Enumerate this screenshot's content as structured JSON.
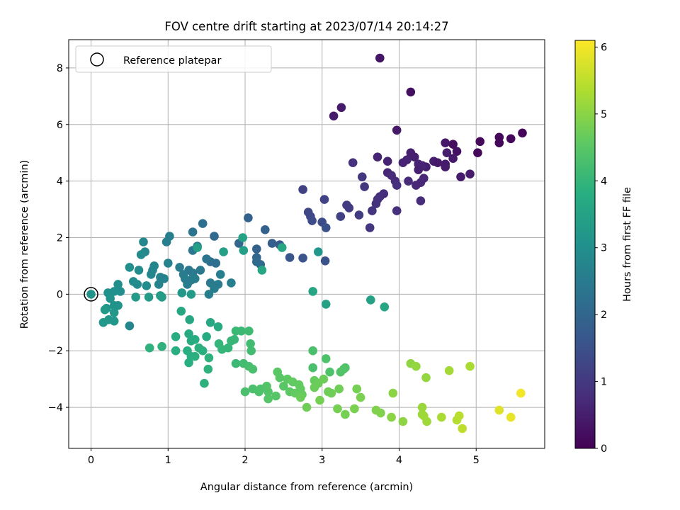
{
  "chart_data": {
    "type": "scatter",
    "title": "FOV centre drift starting at 2023/07/14 20:14:27",
    "xlabel": "Angular distance from reference (arcmin)",
    "ylabel": "Rotation from reference (arcmin)",
    "xlim": [
      -0.29,
      5.89
    ],
    "ylim": [
      -5.45,
      9.0
    ],
    "x_ticks": [
      0,
      1,
      2,
      3,
      4,
      5
    ],
    "y_ticks": [
      -4,
      -2,
      0,
      2,
      4,
      6,
      8
    ],
    "grid": true,
    "legend": {
      "position": "top-left",
      "entries": [
        "Reference platepar"
      ]
    },
    "reference_point": {
      "x": 0,
      "y": 0
    },
    "colorbar": {
      "label": "Hours from first FF file",
      "colormap": "viridis",
      "range": [
        0,
        6.1
      ],
      "ticks": [
        0,
        1,
        2,
        3,
        4,
        5,
        6
      ]
    },
    "points": [
      {
        "x": 3.75,
        "y": 8.35,
        "h": 0.35
      },
      {
        "x": 4.15,
        "y": 7.15,
        "h": 0.25
      },
      {
        "x": 3.25,
        "y": 6.6,
        "h": 0.45
      },
      {
        "x": 3.15,
        "y": 6.3,
        "h": 0.45
      },
      {
        "x": 5.6,
        "y": 5.7,
        "h": 0.1
      },
      {
        "x": 5.45,
        "y": 5.5,
        "h": 0.1
      },
      {
        "x": 5.3,
        "y": 5.55,
        "h": 0.1
      },
      {
        "x": 5.3,
        "y": 5.35,
        "h": 0.1
      },
      {
        "x": 5.05,
        "y": 5.4,
        "h": 0.1
      },
      {
        "x": 5.02,
        "y": 5.0,
        "h": 0.1
      },
      {
        "x": 4.7,
        "y": 5.3,
        "h": 0.2
      },
      {
        "x": 4.6,
        "y": 5.35,
        "h": 0.4
      },
      {
        "x": 4.62,
        "y": 5.0,
        "h": 0.5
      },
      {
        "x": 4.75,
        "y": 5.05,
        "h": 0.3
      },
      {
        "x": 3.97,
        "y": 5.8,
        "h": 0.4
      },
      {
        "x": 3.72,
        "y": 4.85,
        "h": 0.6
      },
      {
        "x": 4.1,
        "y": 4.75,
        "h": 0.6
      },
      {
        "x": 4.15,
        "y": 5.0,
        "h": 0.5
      },
      {
        "x": 4.2,
        "y": 4.85,
        "h": 0.5
      },
      {
        "x": 4.35,
        "y": 4.5,
        "h": 0.5
      },
      {
        "x": 4.45,
        "y": 4.7,
        "h": 0.5
      },
      {
        "x": 4.5,
        "y": 4.65,
        "h": 0.4
      },
      {
        "x": 4.6,
        "y": 4.6,
        "h": 0.45
      },
      {
        "x": 4.7,
        "y": 4.8,
        "h": 0.45
      },
      {
        "x": 4.6,
        "y": 4.5,
        "h": 0.45
      },
      {
        "x": 4.8,
        "y": 4.15,
        "h": 0.45
      },
      {
        "x": 4.92,
        "y": 4.25,
        "h": 0.45
      },
      {
        "x": 4.25,
        "y": 4.6,
        "h": 0.6
      },
      {
        "x": 4.3,
        "y": 4.55,
        "h": 0.6
      },
      {
        "x": 4.25,
        "y": 4.4,
        "h": 0.55
      },
      {
        "x": 4.28,
        "y": 3.95,
        "h": 0.7
      },
      {
        "x": 4.32,
        "y": 4.1,
        "h": 0.7
      },
      {
        "x": 4.22,
        "y": 3.85,
        "h": 0.7
      },
      {
        "x": 4.28,
        "y": 3.3,
        "h": 0.75
      },
      {
        "x": 4.05,
        "y": 4.65,
        "h": 0.6
      },
      {
        "x": 3.85,
        "y": 4.7,
        "h": 0.6
      },
      {
        "x": 3.85,
        "y": 4.3,
        "h": 0.65
      },
      {
        "x": 3.9,
        "y": 4.2,
        "h": 0.75
      },
      {
        "x": 3.95,
        "y": 4.0,
        "h": 0.75
      },
      {
        "x": 3.97,
        "y": 3.85,
        "h": 0.8
      },
      {
        "x": 4.12,
        "y": 4.0,
        "h": 0.75
      },
      {
        "x": 3.8,
        "y": 3.55,
        "h": 0.8
      },
      {
        "x": 3.75,
        "y": 3.45,
        "h": 0.8
      },
      {
        "x": 3.72,
        "y": 3.35,
        "h": 0.85
      },
      {
        "x": 3.7,
        "y": 3.2,
        "h": 0.85
      },
      {
        "x": 3.65,
        "y": 2.95,
        "h": 0.9
      },
      {
        "x": 3.97,
        "y": 2.95,
        "h": 0.85
      },
      {
        "x": 3.62,
        "y": 2.35,
        "h": 0.95
      },
      {
        "x": 3.4,
        "y": 4.65,
        "h": 0.85
      },
      {
        "x": 3.52,
        "y": 4.15,
        "h": 0.95
      },
      {
        "x": 3.55,
        "y": 3.8,
        "h": 0.95
      },
      {
        "x": 3.32,
        "y": 3.15,
        "h": 1.1
      },
      {
        "x": 3.35,
        "y": 3.05,
        "h": 1.05
      },
      {
        "x": 3.48,
        "y": 2.8,
        "h": 1.1
      },
      {
        "x": 3.24,
        "y": 2.75,
        "h": 1.15
      },
      {
        "x": 3.03,
        "y": 3.35,
        "h": 1.2
      },
      {
        "x": 2.75,
        "y": 3.7,
        "h": 1.2
      },
      {
        "x": 2.82,
        "y": 2.9,
        "h": 1.3
      },
      {
        "x": 2.85,
        "y": 2.75,
        "h": 1.3
      },
      {
        "x": 2.87,
        "y": 2.6,
        "h": 1.4
      },
      {
        "x": 3.0,
        "y": 2.55,
        "h": 1.4
      },
      {
        "x": 3.05,
        "y": 2.35,
        "h": 1.5
      },
      {
        "x": 3.04,
        "y": 1.18,
        "h": 1.5
      },
      {
        "x": 2.75,
        "y": 1.28,
        "h": 1.6
      },
      {
        "x": 2.58,
        "y": 1.3,
        "h": 1.65
      },
      {
        "x": 2.45,
        "y": 1.75,
        "h": 1.7
      },
      {
        "x": 2.35,
        "y": 1.8,
        "h": 1.8
      },
      {
        "x": 2.26,
        "y": 2.28,
        "h": 1.9
      },
      {
        "x": 2.04,
        "y": 2.7,
        "h": 1.9
      },
      {
        "x": 2.15,
        "y": 1.6,
        "h": 1.9
      },
      {
        "x": 2.15,
        "y": 1.3,
        "h": 2.0
      },
      {
        "x": 2.15,
        "y": 1.15,
        "h": 2.1
      },
      {
        "x": 2.2,
        "y": 1.05,
        "h": 2.1
      },
      {
        "x": 1.92,
        "y": 1.8,
        "h": 2.0
      },
      {
        "x": 1.6,
        "y": 2.05,
        "h": 2.1
      },
      {
        "x": 1.62,
        "y": 1.1,
        "h": 2.2
      },
      {
        "x": 1.55,
        "y": 1.15,
        "h": 2.2
      },
      {
        "x": 1.5,
        "y": 1.25,
        "h": 2.3
      },
      {
        "x": 1.45,
        "y": 2.5,
        "h": 2.2
      },
      {
        "x": 1.32,
        "y": 2.2,
        "h": 2.3
      },
      {
        "x": 1.38,
        "y": 1.7,
        "h": 2.4
      },
      {
        "x": 1.32,
        "y": 1.55,
        "h": 2.4
      },
      {
        "x": 1.27,
        "y": 0.85,
        "h": 2.4
      },
      {
        "x": 1.32,
        "y": 0.75,
        "h": 2.45
      },
      {
        "x": 1.42,
        "y": 0.85,
        "h": 2.45
      },
      {
        "x": 1.3,
        "y": 0.5,
        "h": 2.5
      },
      {
        "x": 1.2,
        "y": 0.7,
        "h": 2.5
      },
      {
        "x": 1.15,
        "y": 0.95,
        "h": 2.5
      },
      {
        "x": 1.22,
        "y": 0.55,
        "h": 2.55
      },
      {
        "x": 1.25,
        "y": 0.35,
        "h": 2.55
      },
      {
        "x": 1.35,
        "y": 0.55,
        "h": 2.55
      },
      {
        "x": 1.55,
        "y": 0.4,
        "h": 2.5
      },
      {
        "x": 1.65,
        "y": 0.35,
        "h": 2.5
      },
      {
        "x": 1.6,
        "y": 0.2,
        "h": 2.55
      },
      {
        "x": 1.53,
        "y": 0.0,
        "h": 2.6
      },
      {
        "x": 1.82,
        "y": 0.4,
        "h": 2.6
      },
      {
        "x": 1.68,
        "y": 0.7,
        "h": 2.6
      },
      {
        "x": 1.02,
        "y": 2.05,
        "h": 2.6
      },
      {
        "x": 0.98,
        "y": 1.85,
        "h": 2.6
      },
      {
        "x": 1.0,
        "y": 1.1,
        "h": 2.7
      },
      {
        "x": 0.9,
        "y": 0.6,
        "h": 2.7
      },
      {
        "x": 0.95,
        "y": 0.55,
        "h": 2.7
      },
      {
        "x": 0.88,
        "y": 0.35,
        "h": 2.7
      },
      {
        "x": 0.78,
        "y": 0.7,
        "h": 2.8
      },
      {
        "x": 0.8,
        "y": 0.85,
        "h": 2.8
      },
      {
        "x": 0.82,
        "y": 1.0,
        "h": 2.8
      },
      {
        "x": 0.68,
        "y": 1.85,
        "h": 2.8
      },
      {
        "x": 0.7,
        "y": 1.5,
        "h": 2.8
      },
      {
        "x": 0.65,
        "y": 1.4,
        "h": 2.9
      },
      {
        "x": 0.62,
        "y": 0.85,
        "h": 2.9
      },
      {
        "x": 0.6,
        "y": 0.35,
        "h": 2.9
      },
      {
        "x": 0.72,
        "y": 0.3,
        "h": 2.95
      },
      {
        "x": 0.55,
        "y": 0.45,
        "h": 2.95
      },
      {
        "x": 0.5,
        "y": 0.95,
        "h": 3.0
      },
      {
        "x": 0.35,
        "y": 0.35,
        "h": 3.0
      },
      {
        "x": 0.38,
        "y": 0.1,
        "h": 3.0
      },
      {
        "x": 0.3,
        "y": 0.1,
        "h": 3.05
      },
      {
        "x": 0.22,
        "y": 0.05,
        "h": 3.05
      },
      {
        "x": 0.25,
        "y": -0.15,
        "h": 3.1
      },
      {
        "x": 0.3,
        "y": -0.4,
        "h": 3.1
      },
      {
        "x": 0.35,
        "y": -0.4,
        "h": 3.1
      },
      {
        "x": 0.2,
        "y": -0.5,
        "h": 3.15
      },
      {
        "x": 0.3,
        "y": -0.65,
        "h": 3.2
      },
      {
        "x": 0.3,
        "y": -0.95,
        "h": 3.2
      },
      {
        "x": 0.23,
        "y": -0.9,
        "h": 3.2
      },
      {
        "x": 0.16,
        "y": -1.0,
        "h": 3.2
      },
      {
        "x": 0.18,
        "y": -0.55,
        "h": 3.25
      },
      {
        "x": 0.5,
        "y": -1.12,
        "h": 2.8
      },
      {
        "x": 0.58,
        "y": -0.1,
        "h": 3.3
      },
      {
        "x": 0.75,
        "y": -0.1,
        "h": 3.3
      },
      {
        "x": 0.9,
        "y": -0.05,
        "h": 3.3
      },
      {
        "x": 0.92,
        "y": -0.1,
        "h": 3.35
      },
      {
        "x": 1.18,
        "y": 0.05,
        "h": 3.2
      },
      {
        "x": 1.3,
        "y": 0.0,
        "h": 3.3
      },
      {
        "x": 2.95,
        "y": 1.5,
        "h": 3.2
      },
      {
        "x": 3.05,
        "y": -0.35,
        "h": 3.45
      },
      {
        "x": 3.63,
        "y": -0.2,
        "h": 3.5
      },
      {
        "x": 3.81,
        "y": -0.45,
        "h": 3.6
      },
      {
        "x": 2.88,
        "y": 0.1,
        "h": 3.55
      },
      {
        "x": 1.97,
        "y": 2.0,
        "h": 3.5
      },
      {
        "x": 1.98,
        "y": 1.55,
        "h": 3.4
      },
      {
        "x": 1.72,
        "y": 1.5,
        "h": 3.45
      },
      {
        "x": 2.22,
        "y": 0.85,
        "h": 3.6
      },
      {
        "x": 2.48,
        "y": 1.65,
        "h": 3.6
      },
      {
        "x": 1.38,
        "y": 1.65,
        "h": 3.4
      },
      {
        "x": 1.17,
        "y": -0.6,
        "h": 3.6
      },
      {
        "x": 1.28,
        "y": -0.9,
        "h": 3.6
      },
      {
        "x": 1.55,
        "y": -1.0,
        "h": 3.65
      },
      {
        "x": 1.65,
        "y": -1.15,
        "h": 3.7
      },
      {
        "x": 1.5,
        "y": -1.5,
        "h": 3.7
      },
      {
        "x": 1.27,
        "y": -1.4,
        "h": 3.7
      },
      {
        "x": 1.3,
        "y": -1.65,
        "h": 3.75
      },
      {
        "x": 1.35,
        "y": -1.6,
        "h": 3.75
      },
      {
        "x": 1.1,
        "y": -1.5,
        "h": 3.75
      },
      {
        "x": 1.1,
        "y": -2.0,
        "h": 3.8
      },
      {
        "x": 1.25,
        "y": -2.0,
        "h": 3.8
      },
      {
        "x": 1.3,
        "y": -2.2,
        "h": 3.8
      },
      {
        "x": 1.35,
        "y": -2.2,
        "h": 3.85
      },
      {
        "x": 1.4,
        "y": -1.9,
        "h": 3.85
      },
      {
        "x": 1.45,
        "y": -2.0,
        "h": 3.85
      },
      {
        "x": 1.27,
        "y": -2.42,
        "h": 3.8
      },
      {
        "x": 1.53,
        "y": -2.25,
        "h": 3.9
      },
      {
        "x": 1.52,
        "y": -2.65,
        "h": 3.9
      },
      {
        "x": 1.47,
        "y": -3.15,
        "h": 3.9
      },
      {
        "x": 0.92,
        "y": -1.85,
        "h": 3.9
      },
      {
        "x": 0.76,
        "y": -1.9,
        "h": 3.9
      },
      {
        "x": 1.66,
        "y": -1.75,
        "h": 4.0
      },
      {
        "x": 1.7,
        "y": -1.95,
        "h": 4.0
      },
      {
        "x": 1.78,
        "y": -1.9,
        "h": 4.0
      },
      {
        "x": 1.82,
        "y": -1.65,
        "h": 4.05
      },
      {
        "x": 1.86,
        "y": -1.6,
        "h": 4.05
      },
      {
        "x": 1.88,
        "y": -1.3,
        "h": 4.1
      },
      {
        "x": 1.95,
        "y": -1.3,
        "h": 4.1
      },
      {
        "x": 2.05,
        "y": -1.3,
        "h": 4.15
      },
      {
        "x": 2.07,
        "y": -1.75,
        "h": 4.2
      },
      {
        "x": 2.08,
        "y": -2.0,
        "h": 4.2
      },
      {
        "x": 1.88,
        "y": -2.45,
        "h": 4.1
      },
      {
        "x": 1.98,
        "y": -2.45,
        "h": 4.2
      },
      {
        "x": 2.05,
        "y": -2.55,
        "h": 4.25
      },
      {
        "x": 2.1,
        "y": -2.65,
        "h": 4.3
      },
      {
        "x": 2.88,
        "y": -2.0,
        "h": 4.3
      },
      {
        "x": 2.88,
        "y": -2.6,
        "h": 4.3
      },
      {
        "x": 3.05,
        "y": -2.28,
        "h": 4.35
      },
      {
        "x": 3.1,
        "y": -2.75,
        "h": 4.35
      },
      {
        "x": 3.28,
        "y": -2.65,
        "h": 4.4
      },
      {
        "x": 3.3,
        "y": -2.6,
        "h": 4.4
      },
      {
        "x": 3.24,
        "y": -2.75,
        "h": 4.4
      },
      {
        "x": 2.0,
        "y": -3.45,
        "h": 4.3
      },
      {
        "x": 2.1,
        "y": -3.35,
        "h": 4.3
      },
      {
        "x": 2.18,
        "y": -3.45,
        "h": 4.35
      },
      {
        "x": 2.2,
        "y": -3.35,
        "h": 4.35
      },
      {
        "x": 2.28,
        "y": -3.25,
        "h": 4.4
      },
      {
        "x": 2.3,
        "y": -3.45,
        "h": 4.4
      },
      {
        "x": 2.3,
        "y": -3.7,
        "h": 4.45
      },
      {
        "x": 2.4,
        "y": -3.6,
        "h": 4.45
      },
      {
        "x": 2.42,
        "y": -2.75,
        "h": 4.5
      },
      {
        "x": 2.45,
        "y": -2.95,
        "h": 4.5
      },
      {
        "x": 2.5,
        "y": -3.25,
        "h": 4.5
      },
      {
        "x": 2.55,
        "y": -3.0,
        "h": 4.55
      },
      {
        "x": 2.58,
        "y": -3.45,
        "h": 4.55
      },
      {
        "x": 2.62,
        "y": -3.1,
        "h": 4.6
      },
      {
        "x": 2.65,
        "y": -3.5,
        "h": 4.6
      },
      {
        "x": 2.7,
        "y": -3.2,
        "h": 4.6
      },
      {
        "x": 2.72,
        "y": -3.35,
        "h": 4.6
      },
      {
        "x": 2.74,
        "y": -3.55,
        "h": 4.65
      },
      {
        "x": 2.9,
        "y": -3.05,
        "h": 4.65
      },
      {
        "x": 2.9,
        "y": -3.3,
        "h": 4.7
      },
      {
        "x": 2.95,
        "y": -3.15,
        "h": 4.7
      },
      {
        "x": 3.02,
        "y": -3.0,
        "h": 4.7
      },
      {
        "x": 3.08,
        "y": -3.45,
        "h": 4.75
      },
      {
        "x": 3.12,
        "y": -3.5,
        "h": 4.75
      },
      {
        "x": 3.22,
        "y": -3.35,
        "h": 4.75
      },
      {
        "x": 2.97,
        "y": -3.75,
        "h": 4.8
      },
      {
        "x": 2.72,
        "y": -3.65,
        "h": 4.7
      },
      {
        "x": 2.8,
        "y": -4.0,
        "h": 4.75
      },
      {
        "x": 3.2,
        "y": -4.05,
        "h": 4.8
      },
      {
        "x": 3.3,
        "y": -4.25,
        "h": 4.8
      },
      {
        "x": 3.42,
        "y": -4.05,
        "h": 4.85
      },
      {
        "x": 3.45,
        "y": -3.35,
        "h": 4.8
      },
      {
        "x": 3.5,
        "y": -3.65,
        "h": 4.85
      },
      {
        "x": 3.7,
        "y": -4.1,
        "h": 4.9
      },
      {
        "x": 3.76,
        "y": -4.2,
        "h": 4.9
      },
      {
        "x": 3.9,
        "y": -4.35,
        "h": 5.0
      },
      {
        "x": 3.92,
        "y": -3.5,
        "h": 5.0
      },
      {
        "x": 4.05,
        "y": -4.5,
        "h": 5.05
      },
      {
        "x": 4.15,
        "y": -2.45,
        "h": 5.05
      },
      {
        "x": 4.22,
        "y": -2.55,
        "h": 5.1
      },
      {
        "x": 4.35,
        "y": -2.95,
        "h": 5.1
      },
      {
        "x": 4.3,
        "y": -4.0,
        "h": 5.15
      },
      {
        "x": 4.3,
        "y": -4.25,
        "h": 5.15
      },
      {
        "x": 4.32,
        "y": -4.3,
        "h": 5.2
      },
      {
        "x": 4.36,
        "y": -4.5,
        "h": 5.2
      },
      {
        "x": 4.55,
        "y": -4.35,
        "h": 5.3
      },
      {
        "x": 4.65,
        "y": -2.7,
        "h": 5.25
      },
      {
        "x": 4.92,
        "y": -2.55,
        "h": 5.3
      },
      {
        "x": 4.75,
        "y": -4.45,
        "h": 5.4
      },
      {
        "x": 4.78,
        "y": -4.3,
        "h": 5.45
      },
      {
        "x": 4.82,
        "y": -4.75,
        "h": 5.5
      },
      {
        "x": 5.3,
        "y": -4.1,
        "h": 5.8
      },
      {
        "x": 5.45,
        "y": -4.35,
        "h": 5.9
      },
      {
        "x": 5.58,
        "y": -3.5,
        "h": 6.0
      }
    ]
  }
}
